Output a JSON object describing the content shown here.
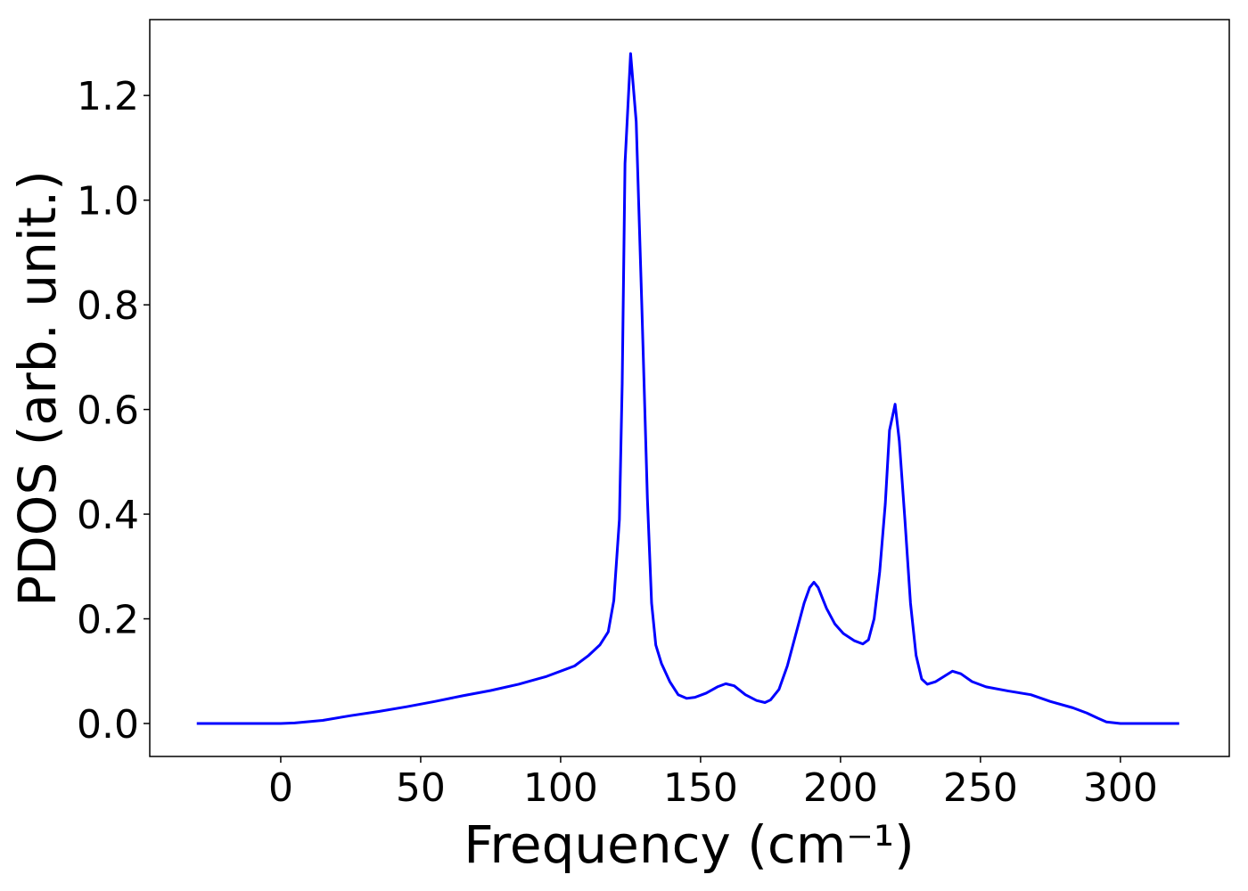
{
  "chart_data": {
    "type": "line",
    "xlabel": "Frequency (cm⁻¹)",
    "ylabel": "PDOS (arb. unit.)",
    "x": [
      -30,
      0,
      5,
      15,
      25,
      35,
      45,
      55,
      65,
      75,
      85,
      95,
      105,
      110,
      114,
      117,
      119,
      121,
      122,
      123,
      125,
      127,
      129,
      131,
      132.5,
      134,
      136,
      139,
      142,
      145,
      148,
      152,
      156,
      159,
      162,
      166,
      170,
      173,
      175,
      178,
      181,
      184,
      187,
      189,
      190.5,
      192,
      195,
      198,
      201,
      205,
      208,
      210,
      212,
      214,
      216,
      217.5,
      219.5,
      221,
      223,
      225,
      227,
      229,
      231,
      234,
      237,
      240,
      243,
      247,
      252,
      260,
      268,
      275,
      283,
      288,
      292,
      295,
      300,
      321
    ],
    "series": [
      {
        "color": "#0000ff",
        "values": [
          0,
          0,
          0.001,
          0.006,
          0.015,
          0.023,
          0.032,
          0.042,
          0.053,
          0.063,
          0.075,
          0.09,
          0.11,
          0.13,
          0.15,
          0.175,
          0.235,
          0.39,
          0.65,
          1.07,
          1.28,
          1.15,
          0.8,
          0.43,
          0.23,
          0.15,
          0.115,
          0.08,
          0.055,
          0.048,
          0.05,
          0.058,
          0.07,
          0.076,
          0.072,
          0.055,
          0.044,
          0.04,
          0.045,
          0.065,
          0.11,
          0.17,
          0.23,
          0.26,
          0.27,
          0.26,
          0.22,
          0.19,
          0.172,
          0.158,
          0.152,
          0.16,
          0.2,
          0.29,
          0.42,
          0.56,
          0.61,
          0.54,
          0.39,
          0.23,
          0.13,
          0.085,
          0.075,
          0.08,
          0.09,
          0.1,
          0.095,
          0.08,
          0.07,
          0.062,
          0.055,
          0.042,
          0.03,
          0.02,
          0.01,
          0.003,
          0,
          0
        ]
      }
    ],
    "xlim": [
      -46.8,
      338.9
    ],
    "ylim": [
      -0.063,
      1.345
    ],
    "xticks": [
      0,
      50,
      100,
      150,
      200,
      250,
      300
    ],
    "yticks": [
      {
        "value": 0,
        "label": "0.0"
      },
      {
        "value": 0.2,
        "label": "0.2"
      },
      {
        "value": 0.4,
        "label": "0.4"
      },
      {
        "value": 0.6,
        "label": "0.6"
      },
      {
        "value": 0.8,
        "label": "0.8"
      },
      {
        "value": 1.0,
        "label": "1.0"
      },
      {
        "value": 1.2,
        "label": "1.2"
      }
    ]
  }
}
